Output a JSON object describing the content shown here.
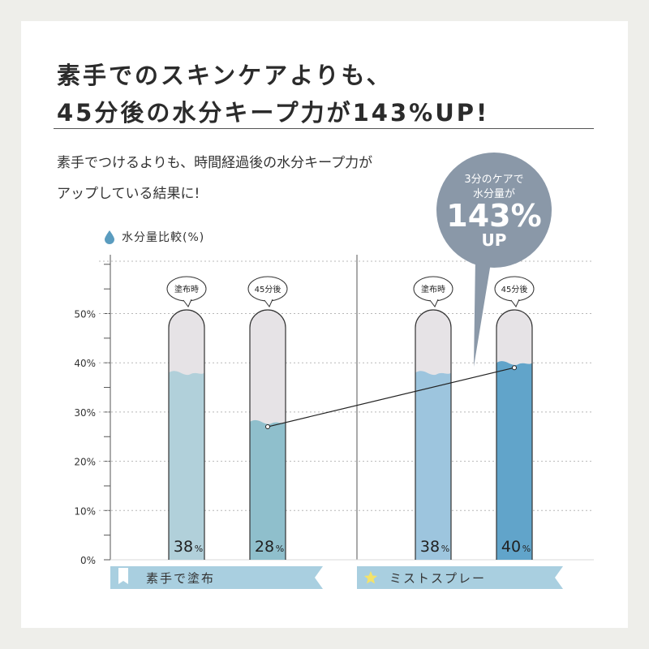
{
  "headline": {
    "line1": "素手でのスキンケアよりも、",
    "line2": "45分後の水分キープ力が143%UP!"
  },
  "description": {
    "line1": "素手でつけるよりも、時間経過後の水分キープ力が",
    "line2": "アップしている結果に!"
  },
  "callout": {
    "line1": "3分のケアで",
    "line2": "水分量が",
    "value": "143%",
    "suffix": "UP"
  },
  "chart_data": {
    "type": "bar",
    "ylabel": "水分量比較(%)",
    "ylim": [
      0,
      60
    ],
    "yticks": [
      "0%",
      "10%",
      "20%",
      "30%",
      "40%",
      "50%"
    ],
    "groups": [
      {
        "name": "素手で塗布",
        "bars": [
          {
            "label": "塗布時",
            "value": 38,
            "display": "38",
            "unit": "%",
            "color": "#b1d0da"
          },
          {
            "label": "45分後",
            "value": 28,
            "display": "28",
            "unit": "%",
            "color": "#8fbfcc"
          }
        ]
      },
      {
        "name": "ミストスプレー",
        "bars": [
          {
            "label": "塗布時",
            "value": 38,
            "display": "38",
            "unit": "%",
            "color": "#9dc5de"
          },
          {
            "label": "45分後",
            "value": 40,
            "display": "40",
            "unit": "%",
            "color": "#61a4ca"
          }
        ]
      }
    ]
  },
  "colors": {
    "tube_empty": "#e6e3e6",
    "tube_border": "#333333",
    "category_band_left": "#a9cfe0",
    "category_band_right": "#a9cfe0",
    "star": "#f3e26a",
    "drop": "#5a9cbf",
    "callout": "#8a98a8"
  }
}
